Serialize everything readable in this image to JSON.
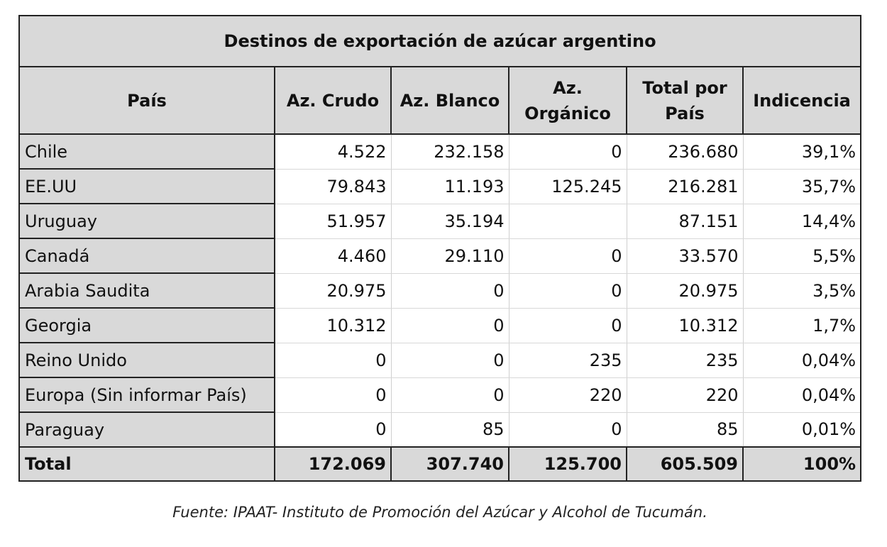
{
  "table": {
    "title": "Destinos de exportación de azúcar argentino",
    "headers": {
      "country": "País",
      "raw": "Az. Crudo",
      "white": "Az. Blanco",
      "organic_line1": "Az.",
      "organic_line2": "Orgánico",
      "total_line1": "Total por",
      "total_line2": "País",
      "share": "Indicencia"
    },
    "rows": [
      {
        "country": "Chile",
        "raw": "4.522",
        "white": "232.158",
        "organic": "0",
        "total": "236.680",
        "share": "39,1%"
      },
      {
        "country": "EE.UU",
        "raw": "79.843",
        "white": "11.193",
        "organic": "125.245",
        "total": "216.281",
        "share": "35,7%"
      },
      {
        "country": "Uruguay",
        "raw": "51.957",
        "white": "35.194",
        "organic": "",
        "total": "87.151",
        "share": "14,4%"
      },
      {
        "country": "Canadá",
        "raw": "4.460",
        "white": "29.110",
        "organic": "0",
        "total": "33.570",
        "share": "5,5%"
      },
      {
        "country": "Arabia Saudita",
        "raw": "20.975",
        "white": "0",
        "organic": "0",
        "total": "20.975",
        "share": "3,5%"
      },
      {
        "country": "Georgia",
        "raw": "10.312",
        "white": "0",
        "organic": "0",
        "total": "10.312",
        "share": "1,7%"
      },
      {
        "country": "Reino Unido",
        "raw": "0",
        "white": "0",
        "organic": "235",
        "total": "235",
        "share": "0,04%"
      },
      {
        "country": "Europa (Sin informar País)",
        "raw": "0",
        "white": "0",
        "organic": "220",
        "total": "220",
        "share": "0,04%"
      },
      {
        "country": "Paraguay",
        "raw": "0",
        "white": "85",
        "organic": "0",
        "total": "85",
        "share": "0,01%"
      }
    ],
    "total": {
      "label": "Total",
      "raw": "172.069",
      "white": "307.740",
      "organic": "125.700",
      "total": "605.509",
      "share": "100%"
    }
  },
  "caption": "Fuente: IPAAT- Instituto de Promoción del Azúcar y Alcohol de Tucumán."
}
